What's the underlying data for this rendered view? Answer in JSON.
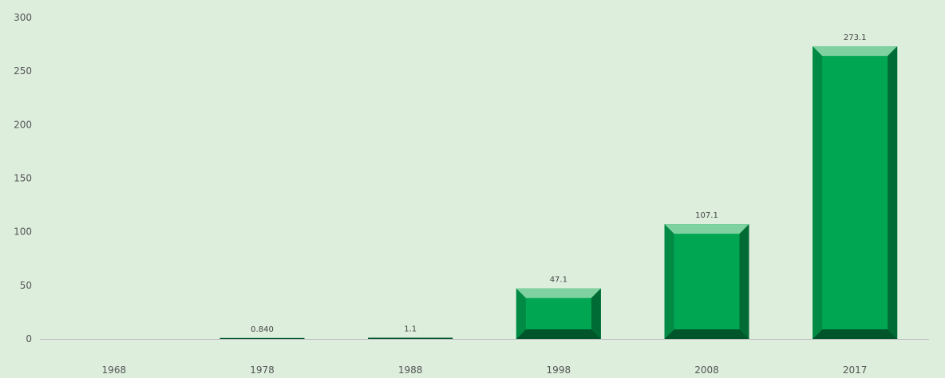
{
  "chart_data": {
    "type": "bar",
    "categories": [
      "1968",
      "1978",
      "1988",
      "1998",
      "2008",
      "2017"
    ],
    "values": [
      0,
      0.84,
      1.1,
      47.1,
      107.1,
      273.1
    ],
    "data_labels": [
      "",
      "0.840",
      "1.1",
      "47.1",
      "107.1",
      "273.1"
    ],
    "yticks": [
      "0",
      "50",
      "100",
      "150",
      "200",
      "250",
      "300"
    ],
    "ylim": [
      0,
      300
    ],
    "grid": false,
    "legend": "none",
    "colors": {
      "bar_face": "#00a651",
      "bar_top": "#7fd19f",
      "bar_right": "#006b35",
      "bar_bottom": "#00552b",
      "axis": "#bbbbbb",
      "background": "#ddeedd"
    }
  }
}
